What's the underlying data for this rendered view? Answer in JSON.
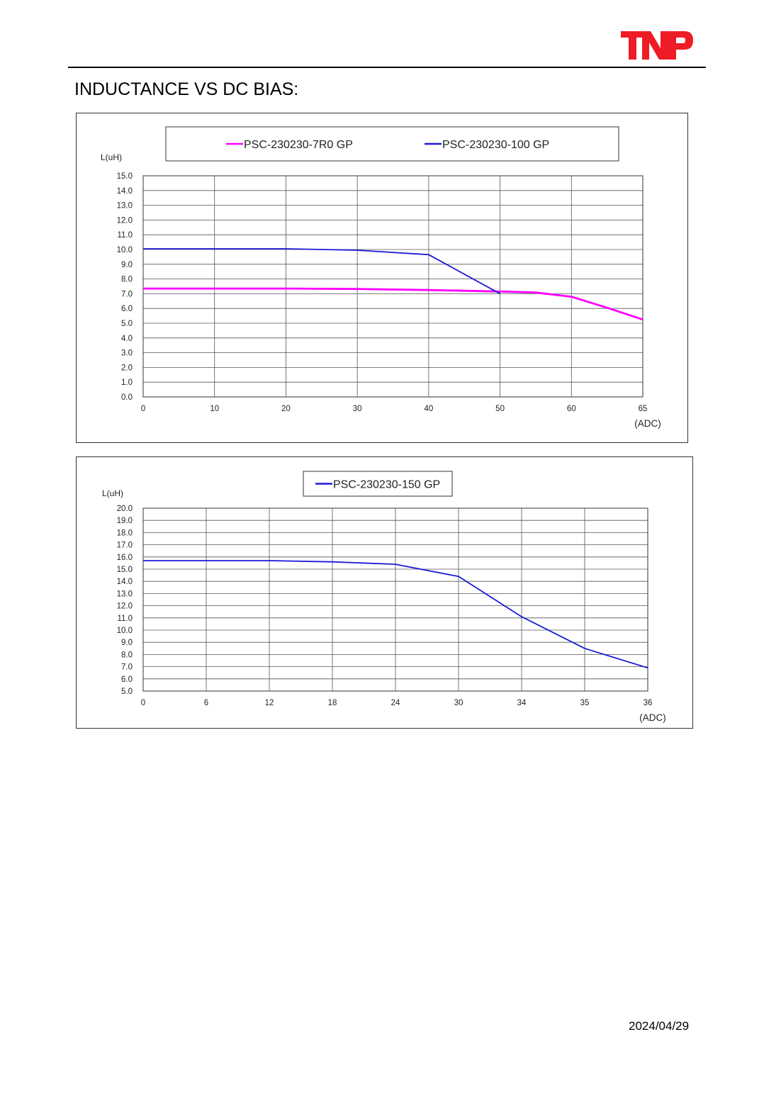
{
  "header": {
    "logo_text": "TNP",
    "brand_color": "#ee1c25"
  },
  "page": {
    "heading": "INDUCTANCE VS DC BIAS:",
    "date": "2024/04/29"
  },
  "colors": {
    "magenta": "#ff00ff",
    "blue": "#1a1ad8",
    "grid": "#555555"
  },
  "chart_data": [
    {
      "type": "line",
      "title": "",
      "xlabel": "(ADC)",
      "ylabel": "L(uH)",
      "grid": true,
      "legend_position": "top-center",
      "x_ticks": [
        "0",
        "10",
        "20",
        "30",
        "40",
        "50",
        "60",
        "65"
      ],
      "y_ticks": [
        "0.0",
        "1.0",
        "2.0",
        "3.0",
        "4.0",
        "5.0",
        "6.0",
        "7.0",
        "8.0",
        "9.0",
        "10.0",
        "11.0",
        "12.0",
        "13.0",
        "14.0",
        "15.0"
      ],
      "ylim": [
        0,
        15
      ],
      "series": [
        {
          "name": "PSC-230230-7R0 GP",
          "color": "#ff00ff",
          "x_index": [
            0,
            1,
            2,
            3,
            4,
            5,
            5.5,
            6,
            6.5,
            7
          ],
          "values": [
            7.35,
            7.35,
            7.35,
            7.32,
            7.25,
            7.15,
            7.08,
            6.8,
            6.05,
            5.25
          ]
        },
        {
          "name": "PSC-230230-100 GP",
          "color": "#1a1ad8",
          "x_index": [
            0,
            1,
            2,
            3,
            4,
            5
          ],
          "values": [
            10.05,
            10.05,
            10.05,
            9.95,
            9.65,
            7.0
          ]
        }
      ]
    },
    {
      "type": "line",
      "title": "",
      "xlabel": "(ADC)",
      "ylabel": "L(uH)",
      "grid": true,
      "legend_position": "top-center",
      "x_ticks": [
        "0",
        "6",
        "12",
        "18",
        "24",
        "30",
        "34",
        "35",
        "36"
      ],
      "y_ticks": [
        "5.0",
        "6.0",
        "7.0",
        "8.0",
        "9.0",
        "10.0",
        "11.0",
        "12.0",
        "13.0",
        "14.0",
        "15.0",
        "16.0",
        "17.0",
        "18.0",
        "19.0",
        "20.0"
      ],
      "ylim": [
        5,
        20
      ],
      "series": [
        {
          "name": "PSC-230230-150 GP",
          "color": "#1a1ad8",
          "x_index": [
            0,
            1,
            2,
            3,
            4,
            5,
            6,
            7,
            8
          ],
          "values": [
            15.7,
            15.7,
            15.7,
            15.6,
            15.4,
            14.4,
            11.1,
            8.5,
            6.9
          ]
        }
      ]
    }
  ]
}
